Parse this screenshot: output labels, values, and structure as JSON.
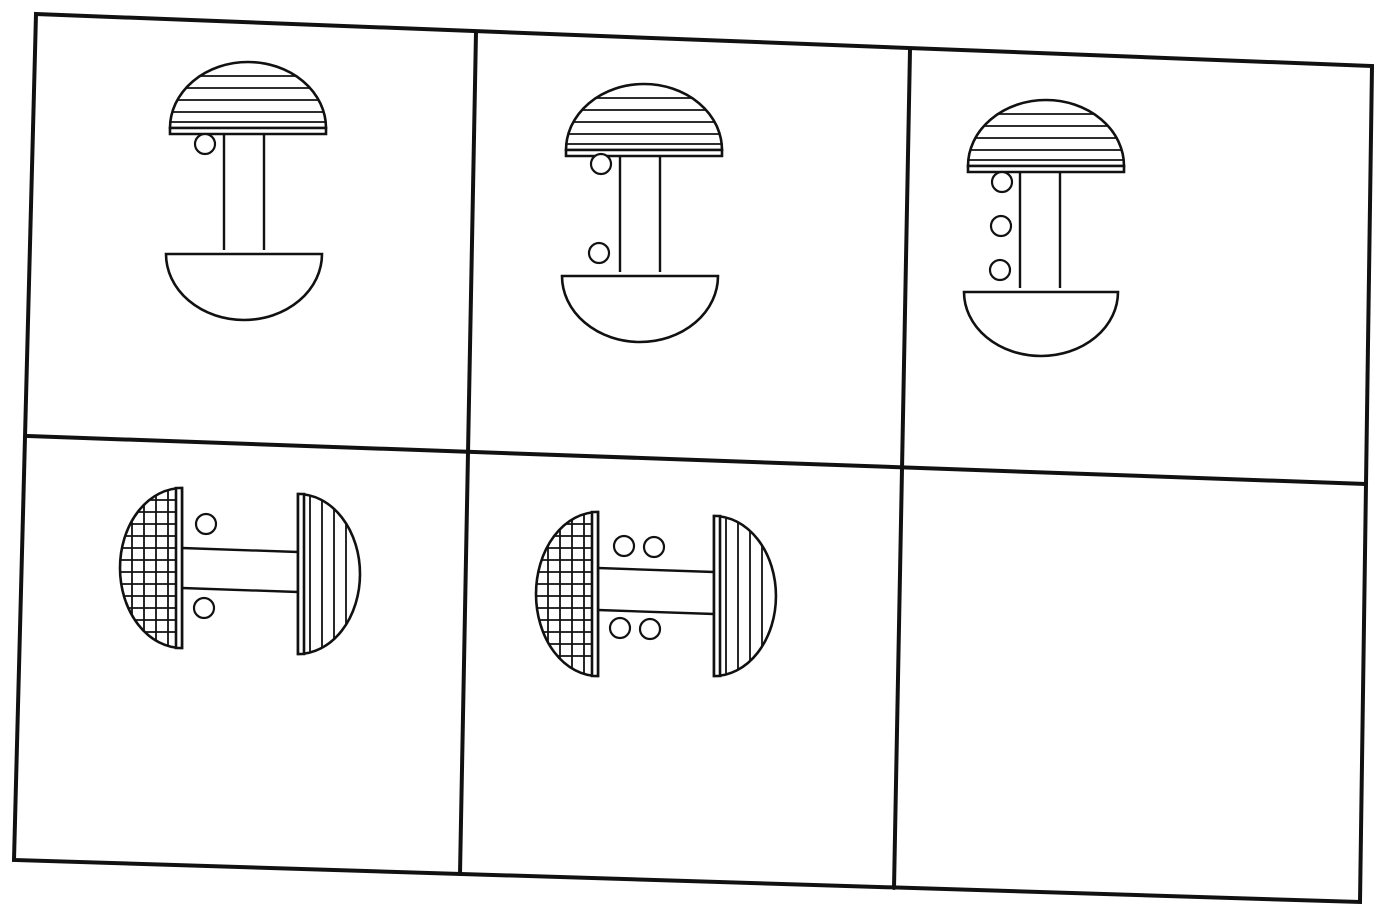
{
  "puzzle": {
    "rows": 2,
    "columns": 3,
    "line_color": "#111111",
    "background_color": "#ffffff",
    "cells": [
      {
        "row": 0,
        "col": 0,
        "figure": "mushroom-vertical",
        "circles_per_side": 1,
        "cap_pattern": "horizontal-stripes"
      },
      {
        "row": 0,
        "col": 1,
        "figure": "mushroom-vertical",
        "circles_per_side": 2,
        "cap_pattern": "horizontal-stripes"
      },
      {
        "row": 0,
        "col": 2,
        "figure": "mushroom-vertical",
        "circles_per_side": 3,
        "cap_pattern": "horizontal-stripes"
      },
      {
        "row": 1,
        "col": 0,
        "figure": "mushroom-horizontal",
        "circles_per_side": 1,
        "left_pattern": "crosshatch",
        "right_pattern": "vertical-stripes"
      },
      {
        "row": 1,
        "col": 1,
        "figure": "mushroom-horizontal",
        "circles_per_side": 2,
        "left_pattern": "crosshatch",
        "right_pattern": "vertical-stripes"
      },
      {
        "row": 1,
        "col": 2,
        "figure": "empty",
        "circles_per_side": 0
      }
    ]
  }
}
